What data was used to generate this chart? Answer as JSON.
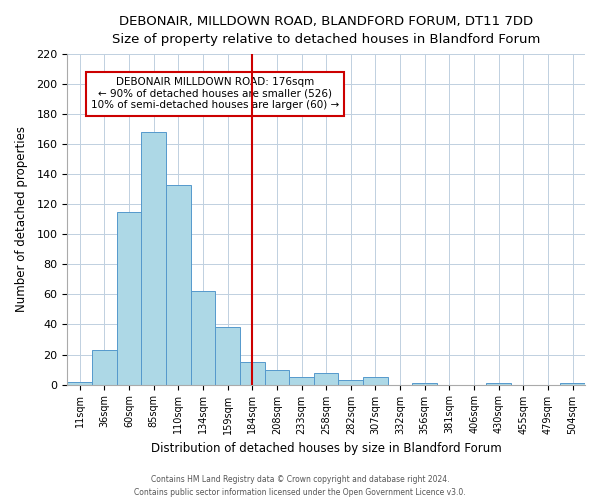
{
  "title": "DEBONAIR, MILLDOWN ROAD, BLANDFORD FORUM, DT11 7DD",
  "subtitle": "Size of property relative to detached houses in Blandford Forum",
  "xlabel": "Distribution of detached houses by size in Blandford Forum",
  "ylabel": "Number of detached properties",
  "bar_labels": [
    "11sqm",
    "36sqm",
    "60sqm",
    "85sqm",
    "110sqm",
    "134sqm",
    "159sqm",
    "184sqm",
    "208sqm",
    "233sqm",
    "258sqm",
    "282sqm",
    "307sqm",
    "332sqm",
    "356sqm",
    "381sqm",
    "406sqm",
    "430sqm",
    "455sqm",
    "479sqm",
    "504sqm"
  ],
  "bar_heights": [
    2,
    23,
    115,
    168,
    133,
    62,
    38,
    15,
    10,
    5,
    8,
    3,
    5,
    0,
    1,
    0,
    0,
    1,
    0,
    0,
    1
  ],
  "bar_color": "#add8e6",
  "bar_edge_color": "#5599cc",
  "vline_x": 7,
  "vline_color": "#cc0000",
  "annotation_title": "DEBONAIR MILLDOWN ROAD: 176sqm",
  "annotation_line1": "← 90% of detached houses are smaller (526)",
  "annotation_line2": "10% of semi-detached houses are larger (60) →",
  "annotation_box_color": "#ffffff",
  "annotation_box_edge": "#cc0000",
  "ylim": [
    0,
    220
  ],
  "yticks": [
    0,
    20,
    40,
    60,
    80,
    100,
    120,
    140,
    160,
    180,
    200,
    220
  ],
  "footer1": "Contains HM Land Registry data © Crown copyright and database right 2024.",
  "footer2": "Contains public sector information licensed under the Open Government Licence v3.0.",
  "background_color": "#ffffff",
  "grid_color": "#c0d0e0"
}
